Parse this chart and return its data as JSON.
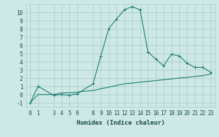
{
  "xlabel": "Humidex (Indice chaleur)",
  "bg_color": "#cde8e5",
  "grid_color": "#aacfcc",
  "line_color": "#1a7a6e",
  "x_ticks": [
    0,
    1,
    3,
    4,
    5,
    6,
    8,
    9,
    10,
    11,
    12,
    13,
    14,
    15,
    16,
    17,
    18,
    19,
    20,
    21,
    22,
    23
  ],
  "series1_x": [
    0,
    1,
    3,
    4,
    5,
    6,
    8,
    9,
    10,
    11,
    12,
    13,
    14,
    15,
    16,
    17,
    18,
    19,
    20,
    21,
    22,
    23
  ],
  "series1_y": [
    -1,
    1,
    -0.1,
    0,
    -0.1,
    0.1,
    1.3,
    4.7,
    8.0,
    9.2,
    10.3,
    10.7,
    10.3,
    5.2,
    4.3,
    3.5,
    4.9,
    4.7,
    3.8,
    3.3,
    3.3,
    2.7
  ],
  "series2_x": [
    0,
    1,
    3,
    4,
    5,
    6,
    8,
    9,
    10,
    11,
    12,
    13,
    14,
    15,
    16,
    17,
    18,
    19,
    20,
    21,
    22,
    23
  ],
  "series2_y": [
    -1,
    0.0,
    0.0,
    0.2,
    0.2,
    0.3,
    0.5,
    0.7,
    0.9,
    1.1,
    1.3,
    1.4,
    1.5,
    1.6,
    1.7,
    1.8,
    1.9,
    2.0,
    2.1,
    2.2,
    2.3,
    2.5
  ],
  "xlim": [
    -0.5,
    23.5
  ],
  "ylim": [
    -1.5,
    11.0
  ],
  "yticks": [
    -1,
    0,
    1,
    2,
    3,
    4,
    5,
    6,
    7,
    8,
    9,
    10
  ],
  "tick_fontsize": 5.5,
  "xlabel_fontsize": 6.5
}
